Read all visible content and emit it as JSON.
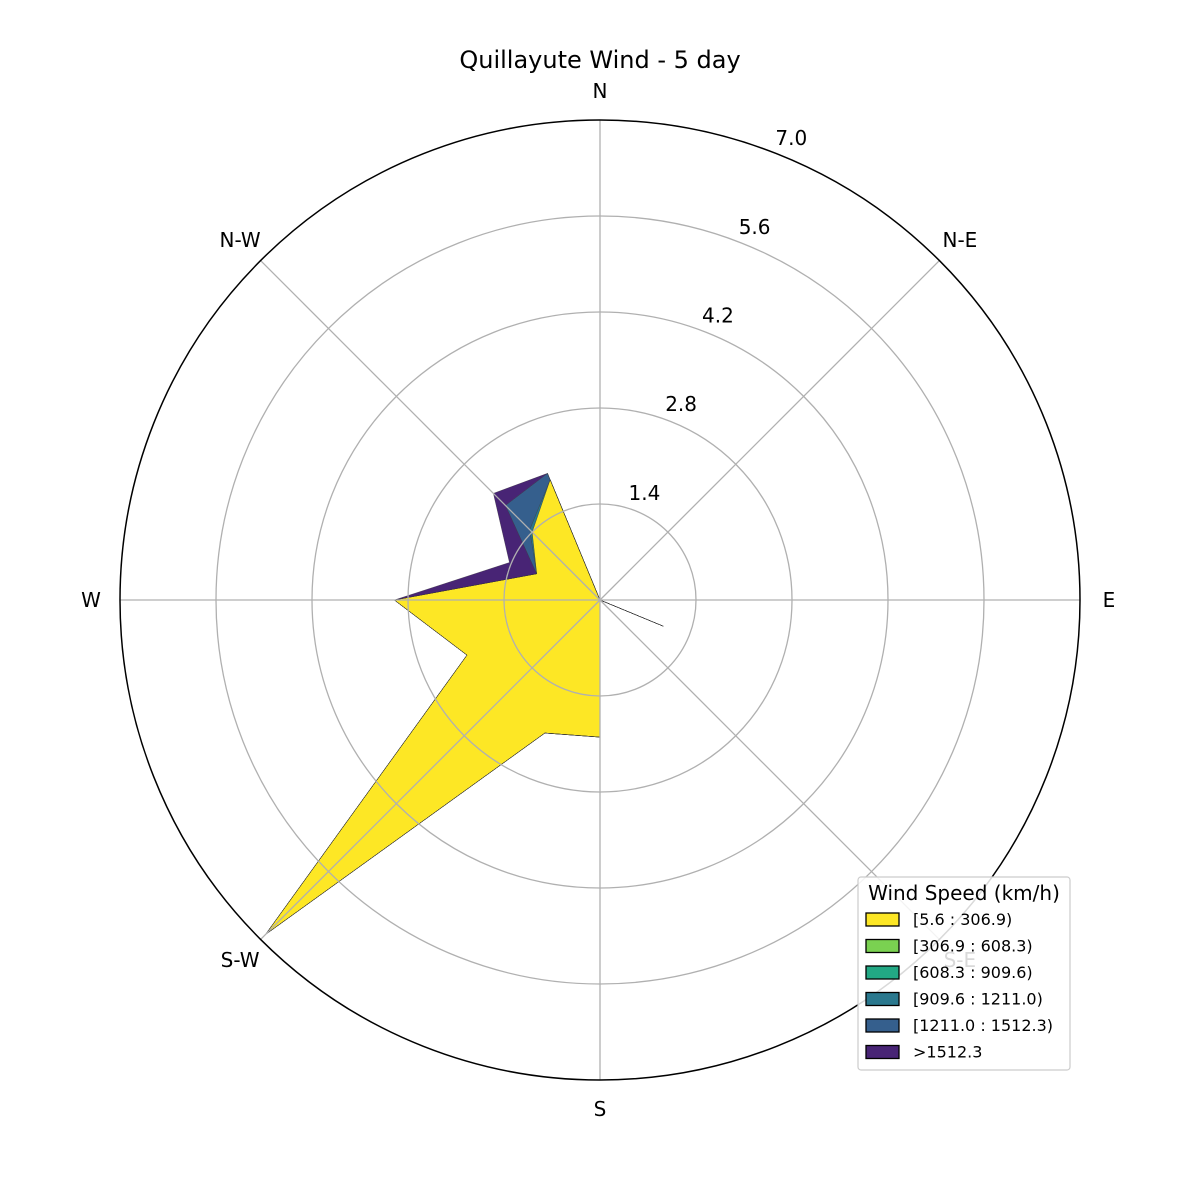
{
  "chart_data": {
    "type": "area",
    "subtype": "windrose",
    "title": "Quillayute Wind - 5 day",
    "direction_labels": [
      "N",
      "N-E",
      "E",
      "S-E",
      "S",
      "S-W",
      "W",
      "N-W"
    ],
    "directions_deg": [
      0,
      22.5,
      45,
      67.5,
      90,
      112.5,
      135,
      157.5,
      180,
      202.5,
      225,
      247.5,
      270,
      292.5,
      315,
      337.5
    ],
    "r_ticks": [
      "1.4",
      "2.8",
      "4.2",
      "5.6",
      "7.0"
    ],
    "r_tick_values": [
      1.4,
      2.8,
      4.2,
      5.6,
      7.0
    ],
    "r_max": 7.0,
    "grid": true,
    "legend": {
      "title": "Wind Speed (km/h)",
      "placement": "lower-right"
    },
    "series": [
      {
        "name": "[5.6 : 306.9)",
        "color": "#fde725",
        "values": [
          0.0,
          0.0,
          0.0,
          0.0,
          0.0,
          1.0,
          0.0,
          0.0,
          2.0,
          2.1,
          6.9,
          2.1,
          3.0,
          1.0,
          1.4,
          1.9
        ]
      },
      {
        "name": "[306.9 : 608.3)",
        "color": "#7ad151",
        "values": [
          0,
          0,
          0,
          0,
          0,
          0,
          0,
          0,
          0,
          0,
          0,
          0,
          0,
          0,
          0,
          0
        ]
      },
      {
        "name": "[608.3 : 909.6)",
        "color": "#22a884",
        "values": [
          0,
          0,
          0,
          0,
          0,
          0,
          0,
          0,
          0,
          0,
          0,
          0,
          0,
          0,
          0,
          0
        ]
      },
      {
        "name": "[909.6 : 1211.0)",
        "color": "#2a788e",
        "values": [
          0,
          0,
          0,
          0,
          0,
          0,
          0,
          0,
          0,
          0,
          0,
          0,
          0,
          0,
          0.05,
          0
        ]
      },
      {
        "name": "[1211.0 : 1512.3)",
        "color": "#355f8d",
        "values": [
          0,
          0,
          0,
          0,
          0,
          0,
          0,
          0,
          0,
          0,
          0,
          0,
          0,
          0,
          0.5,
          0.1
        ]
      },
      {
        "name": ">1512.3",
        "color": "#482475",
        "values": [
          0,
          0,
          0,
          0,
          0,
          0,
          0,
          0,
          0,
          0,
          0,
          0,
          0,
          0.43,
          0.25,
          0
        ]
      }
    ]
  }
}
